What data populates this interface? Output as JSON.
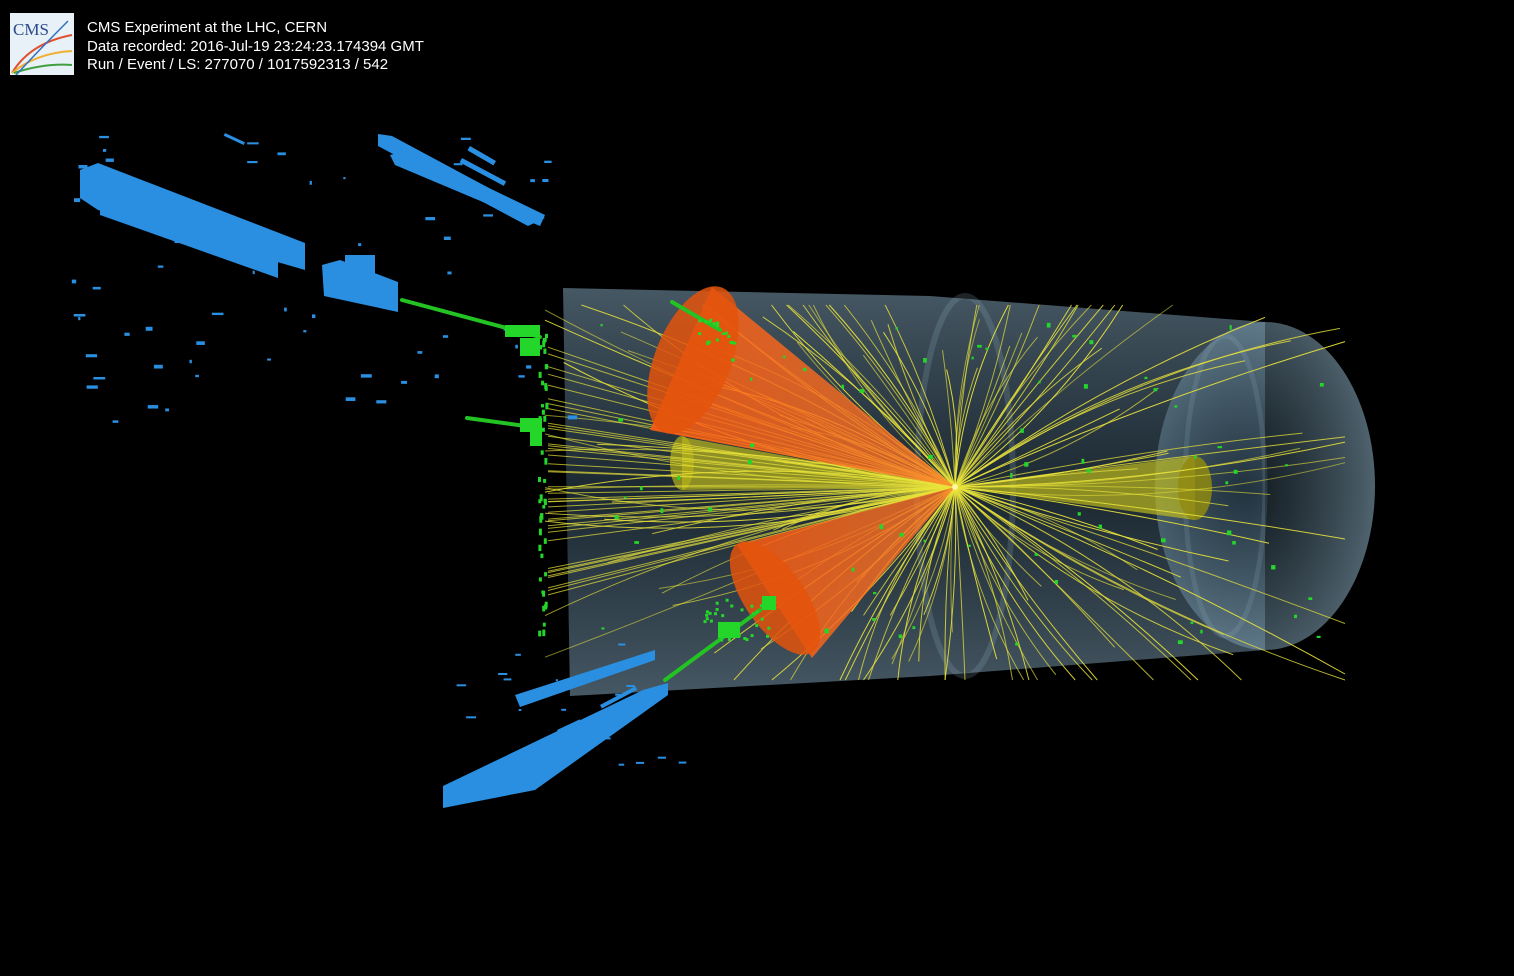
{
  "logo": {
    "text": "CMS",
    "icon": "cms-logo-icon"
  },
  "event_info": {
    "title": "CMS Experiment at the LHC, CERN",
    "date_line": "Data recorded: 2016-Jul-19 23:24:23.174394 GMT",
    "run_line": "Run / Event / LS: 277070 / 1017592313 / 542"
  },
  "colors": {
    "background": "#000000",
    "muon_chamber": "#2a8fe0",
    "track_muon": "#22c322",
    "rechit": "#24d52a",
    "track": "#e8e23a",
    "jet_cone_orange": "#ff6a1a",
    "jet_cone_yellow": "#c8c31c",
    "detector_volume": "#6f93a8"
  }
}
